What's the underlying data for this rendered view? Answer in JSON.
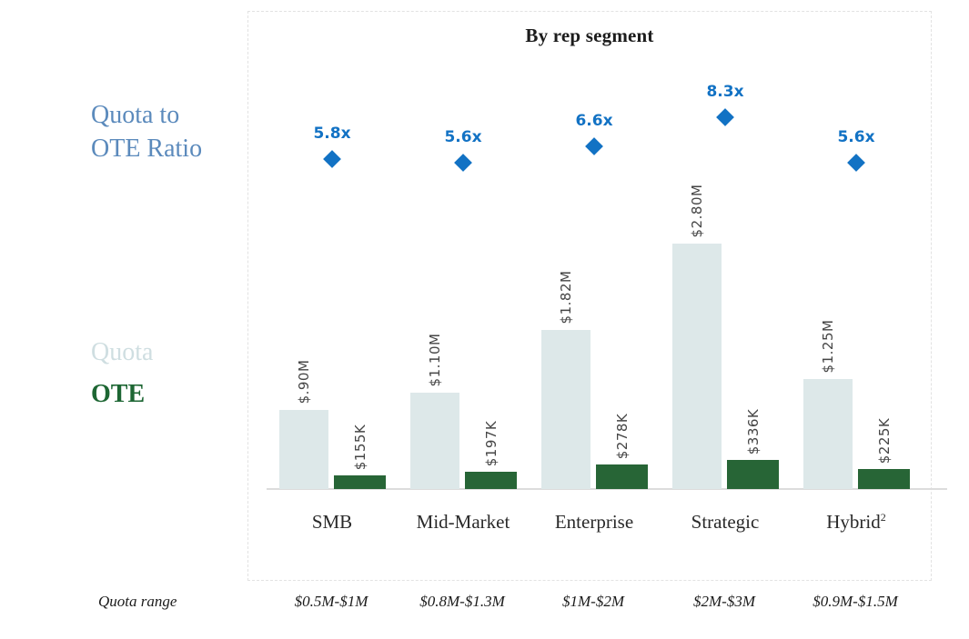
{
  "title": "By rep segment",
  "legend": {
    "ratio_line1": "Quota to",
    "ratio_line2": "OTE Ratio",
    "quota_label": "Quota",
    "ote_label": "OTE"
  },
  "footer": {
    "row_label": "Quota range"
  },
  "colors": {
    "quota_bar": "#dde8e9",
    "ote_bar": "#276536",
    "diamond": "#1272c4",
    "ratio_text": "#1272c4",
    "ratio_legend_text": "#5b8abc",
    "quota_legend_text": "#cfdee1",
    "ote_legend_text": "#1d6633",
    "axis_line": "#dcdcdc"
  },
  "chart_data": {
    "type": "bar",
    "title": "By rep segment",
    "categories": [
      "SMB",
      "Mid-Market",
      "Enterprise",
      "Strategic",
      "Hybrid"
    ],
    "category_superscripts": [
      "",
      "",
      "",
      "",
      "2"
    ],
    "series": [
      {
        "name": "Quota",
        "unit": "$M",
        "values": [
          0.9,
          1.1,
          1.82,
          2.8,
          1.25
        ],
        "labels": [
          "$.90M",
          "$1.10M",
          "$1.82M",
          "$2.80M",
          "$1.25M"
        ],
        "color": "#dde8e9",
        "marker": "bar"
      },
      {
        "name": "OTE",
        "unit": "$K",
        "values": [
          155,
          197,
          278,
          336,
          225
        ],
        "labels": [
          "$155K",
          "$197K",
          "$278K",
          "$336K",
          "$225K"
        ],
        "color": "#276536",
        "marker": "bar"
      },
      {
        "name": "Quota to OTE Ratio",
        "unit": "x",
        "values": [
          5.8,
          5.6,
          6.6,
          8.3,
          5.6
        ],
        "labels": [
          "5.8x",
          "5.6x",
          "6.6x",
          "8.3x",
          "5.6x"
        ],
        "color": "#1272c4",
        "marker": "diamond"
      }
    ],
    "quota_range_row": {
      "label": "Quota range",
      "values": [
        "$0.5M-$1M",
        "$0.8M-$1.3M",
        "$1M-$2M",
        "$2M-$3M",
        "$0.9M-$1.5M"
      ]
    },
    "grid": false,
    "legend_position": "left"
  }
}
